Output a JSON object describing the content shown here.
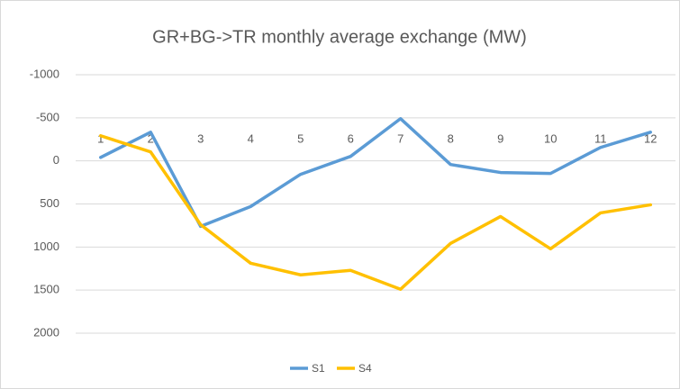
{
  "chart_data": {
    "type": "line",
    "title": "GR+BG->TR monthly average exchange (MW)",
    "categories": [
      "1",
      "2",
      "3",
      "4",
      "5",
      "6",
      "7",
      "8",
      "9",
      "10",
      "11",
      "12"
    ],
    "series": [
      {
        "name": "S1",
        "color": "#5b9bd5",
        "values": [
          -40,
          -333,
          760,
          530,
          156,
          -52,
          -490,
          42,
          135,
          146,
          -156,
          -333
        ]
      },
      {
        "name": "S4",
        "color": "#ffc000",
        "values": [
          -292,
          -104,
          740,
          1188,
          1323,
          1271,
          1490,
          958,
          646,
          1021,
          604,
          510
        ]
      }
    ],
    "ylim": [
      -1000,
      2000
    ],
    "yticks": [
      -1000,
      -500,
      0,
      500,
      1000,
      1500,
      2000
    ],
    "y_reversed": true,
    "grid": true,
    "legend": "bottom"
  }
}
